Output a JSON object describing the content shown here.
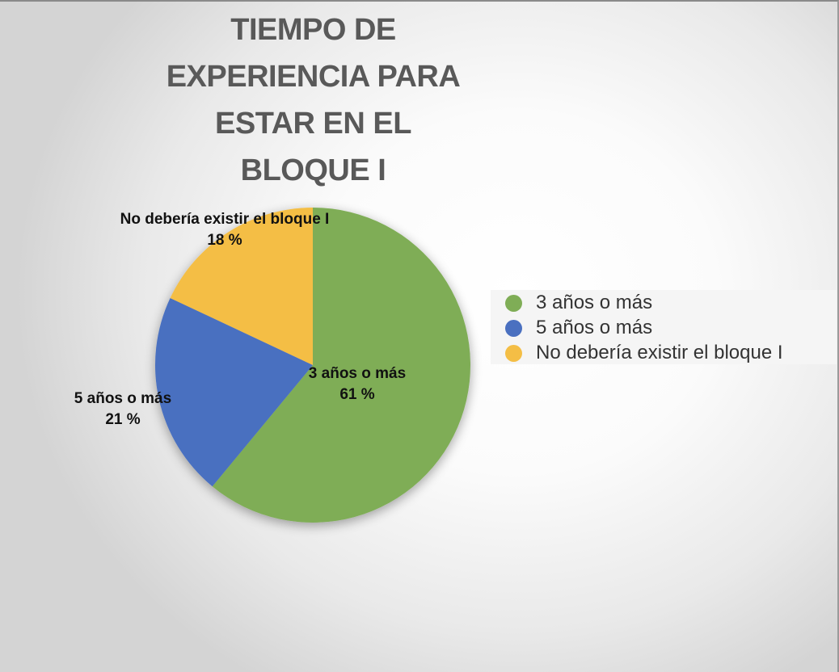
{
  "chart_data": {
    "type": "pie",
    "title": "TIEMPO DE EXPERIENCIA PARA ESTAR EN EL BLOQUE I",
    "title_lines": [
      "TIEMPO DE",
      "EXPERIENCIA PARA",
      "ESTAR EN EL",
      "BLOQUE I"
    ],
    "categories": [
      "3 años o más",
      "5 años o más",
      "No debería existir el bloque I"
    ],
    "values": [
      61,
      21,
      18
    ],
    "value_labels": [
      "61 %",
      "21 %",
      "18 %"
    ],
    "colors": [
      "#7FAD56",
      "#4A70C0",
      "#F4BE45"
    ],
    "legend": {
      "position": "right",
      "entries": [
        "3 años o más",
        "5 años o más",
        "No debería existir el bloque I"
      ]
    }
  }
}
